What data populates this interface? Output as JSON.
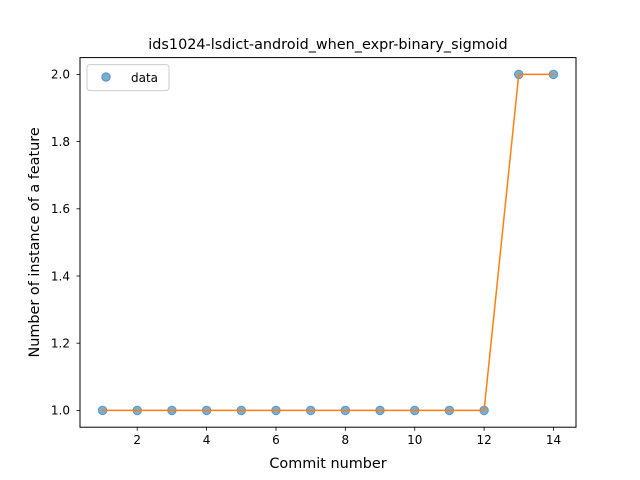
{
  "chart_data": {
    "type": "line",
    "title": "ids1024-lsdict-android_when_expr-binary_sigmoid",
    "xlabel": "Commit number",
    "ylabel": "Number of instance of a feature",
    "xlim": [
      0.35,
      14.65
    ],
    "ylim": [
      0.95,
      2.05
    ],
    "xticks": [
      2,
      4,
      6,
      8,
      10,
      12,
      14
    ],
    "xtick_labels": [
      "2",
      "4",
      "6",
      "8",
      "10",
      "12",
      "14"
    ],
    "yticks": [
      1.0,
      1.2,
      1.4,
      1.6,
      1.8,
      2.0
    ],
    "ytick_labels": [
      "1.0",
      "1.2",
      "1.4",
      "1.6",
      "1.8",
      "2.0"
    ],
    "grid": false,
    "legend": {
      "position": "top-left",
      "entries": [
        "data"
      ]
    },
    "series": [
      {
        "name": "data",
        "style": "markers",
        "color": "#1f77b4",
        "x": [
          1,
          2,
          3,
          4,
          5,
          6,
          7,
          8,
          9,
          10,
          11,
          12,
          13,
          14
        ],
        "y": [
          1,
          1,
          1,
          1,
          1,
          1,
          1,
          1,
          1,
          1,
          1,
          1,
          2,
          2
        ]
      },
      {
        "style": "line",
        "color": "#ff7f0e",
        "x": [
          1,
          2,
          3,
          4,
          5,
          6,
          7,
          8,
          9,
          10,
          11,
          12,
          13,
          14
        ],
        "y": [
          1,
          1,
          1,
          1,
          1,
          1,
          1,
          1,
          1,
          1,
          1,
          1,
          2,
          2
        ]
      }
    ]
  }
}
